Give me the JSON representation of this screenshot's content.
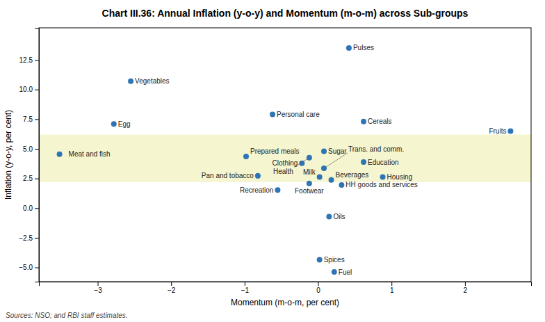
{
  "chart_data": {
    "type": "scatter",
    "title": "Chart III.36: Annual Inflation (y-o-y) and Momentum (m-o-m) across Sub-groups",
    "xlabel": "Momentum (m-o-m, per cent)",
    "ylabel": "Inflation (y-o-y, per cent)",
    "source": "Sources: NSO; and RBI staff estimates.",
    "xlim": [
      -3.8,
      2.9
    ],
    "ylim": [
      -6.2,
      15.2
    ],
    "xticks": [
      {
        "value": -3,
        "label": "−3"
      },
      {
        "value": -2,
        "label": "−2"
      },
      {
        "value": -1,
        "label": "−1"
      },
      0,
      1,
      2
    ],
    "yticks": [
      {
        "value": -5.0,
        "label": "−5.0"
      },
      {
        "value": -2.5,
        "label": "−2.5"
      },
      {
        "value": 0.0,
        "label": "0.0"
      },
      2.5,
      {
        "value": 5.0,
        "label": "5.0"
      },
      7.5,
      {
        "value": 10.0,
        "label": "10.0"
      },
      12.5
    ],
    "grid": false,
    "color": "#2e75b6",
    "band": {
      "y0": 2.2,
      "y1": 6.2,
      "color": "#f5f5d0"
    },
    "labels": [
      "Pulses",
      "Vegetables",
      "Personal care",
      "Egg",
      "Cereals",
      "Fruits",
      "Meat and fish",
      "Sugar",
      "Prepared meals",
      "Health",
      "Education",
      "Clothing",
      "Trans. and comm.",
      "Pan and tobacco",
      "Milk",
      "Housing",
      "Beverages",
      "Footwear",
      "HH goods and services",
      "Recreation",
      "Oils",
      "Spices",
      "Fuel"
    ],
    "x": [
      0.42,
      -2.55,
      -0.62,
      -2.78,
      0.62,
      2.62,
      -3.52,
      0.08,
      -0.98,
      -0.12,
      0.62,
      -0.22,
      0.08,
      -0.82,
      0.02,
      0.88,
      0.18,
      -0.12,
      0.32,
      -0.55,
      0.15,
      0.02,
      0.22
    ],
    "values": [
      13.5,
      10.7,
      7.9,
      7.1,
      7.3,
      6.5,
      4.55,
      4.8,
      4.35,
      4.25,
      3.88,
      3.78,
      3.35,
      2.72,
      2.62,
      2.62,
      2.38,
      2.08,
      1.95,
      1.52,
      -0.72,
      -4.35,
      -5.38
    ]
  }
}
